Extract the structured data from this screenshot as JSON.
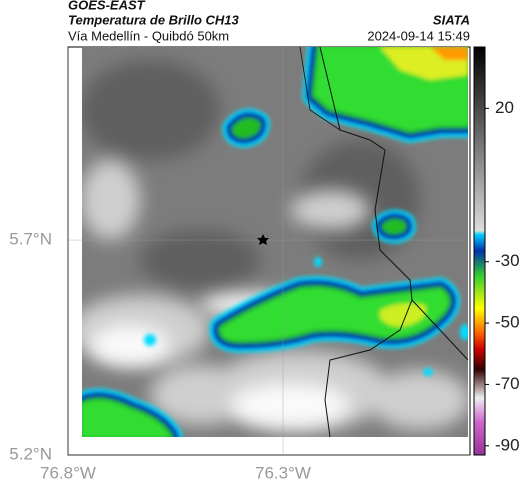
{
  "header": {
    "satellite": "GOES-EAST",
    "title": "Temperatura de Brillo CH13",
    "location": "Vía Medellín - Quibdó 50km",
    "source": "SIATA",
    "datetime": "2024-09-14 15:49"
  },
  "map": {
    "xlim": [
      -76.8,
      -75.865
    ],
    "ylim": [
      5.2,
      6.149
    ],
    "xticks": [
      {
        "value": -76.8,
        "label": "76.8°W"
      },
      {
        "value": -76.3,
        "label": "76.3°W"
      }
    ],
    "yticks": [
      {
        "value": 5.7,
        "label": "5.7°N"
      },
      {
        "value": 5.2,
        "label": "5.2°N"
      }
    ],
    "grid": true
  },
  "colorbar": {
    "lim": [
      -93,
      40
    ],
    "ticks": [
      20,
      -30,
      -50,
      -70,
      -90
    ]
  }
}
